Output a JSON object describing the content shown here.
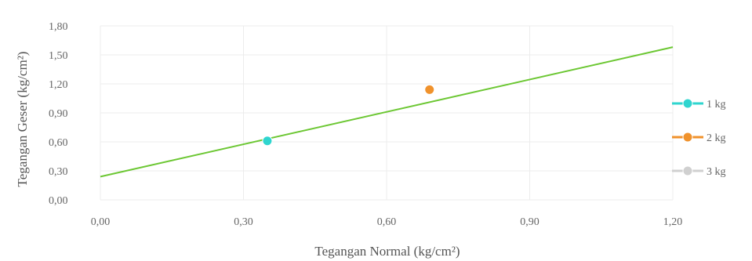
{
  "chart_data": {
    "type": "scatter",
    "xlabel": "Tegangan Normal (kg/cm²)",
    "ylabel": "Tegangan Geser (kg/cm²)",
    "xlim": [
      0,
      1.2
    ],
    "ylim": [
      0,
      1.8
    ],
    "x_ticks": [
      "0,00",
      "0,30",
      "0,60",
      "0,90",
      "1,20"
    ],
    "y_ticks": [
      "0,00",
      "0,30",
      "0,60",
      "0,90",
      "1,20",
      "1,50",
      "1,80"
    ],
    "grid": true,
    "legend_position": "right",
    "series": [
      {
        "name": "1 kg",
        "color": "#2fd5cf",
        "points": [
          {
            "x": 0.35,
            "y": 0.61
          }
        ]
      },
      {
        "name": "2 kg",
        "color": "#f0922c",
        "points": [
          {
            "x": 0.69,
            "y": 1.14
          }
        ]
      },
      {
        "name": "3 kg",
        "color": "#d0d0d0",
        "points": []
      }
    ],
    "trendline": {
      "color": "#6cc733",
      "x": [
        0,
        1.2
      ],
      "y": [
        0.24,
        1.58
      ]
    }
  }
}
